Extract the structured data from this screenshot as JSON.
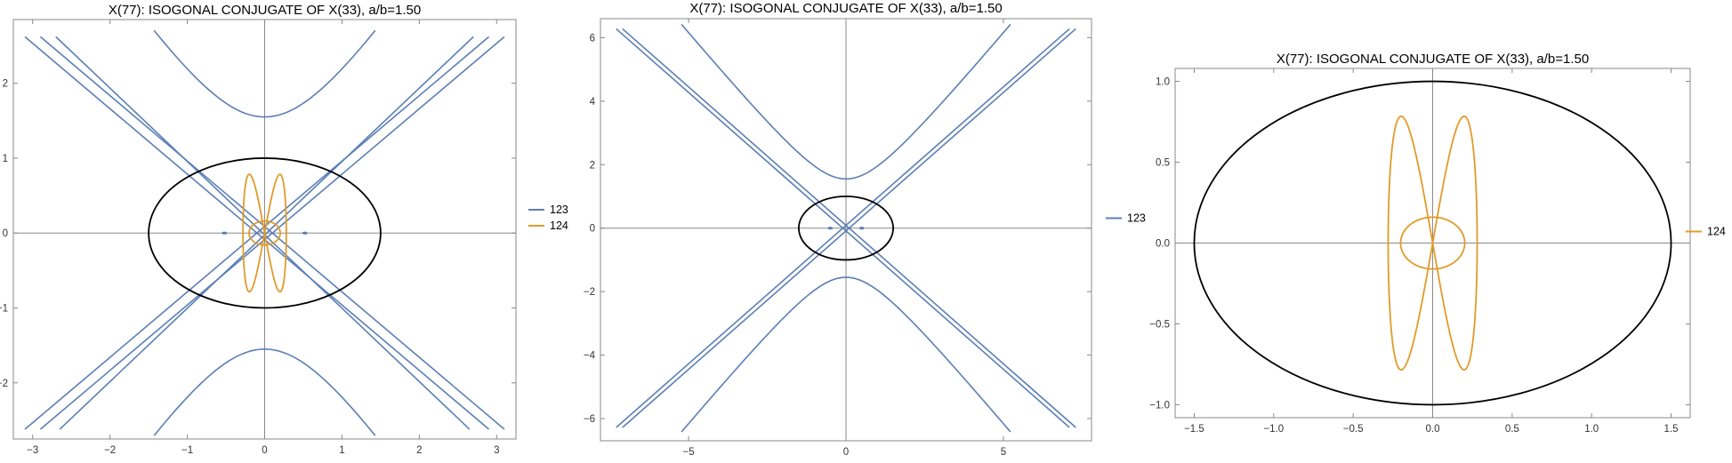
{
  "chart_data": [
    {
      "type": "line",
      "title": "X(77): ISOGONAL CONJUGATE OF X(33), a/b=1.50",
      "xlim": [
        -3.25,
        3.25
      ],
      "ylim": [
        -2.75,
        2.85
      ],
      "x_ticks": [
        -3,
        -2,
        -1,
        0,
        1,
        2,
        3
      ],
      "y_ticks": [
        -2,
        -1,
        0,
        1,
        2
      ],
      "x_tick_labels": [
        "−3",
        "−2",
        "−1",
        "0",
        "1",
        "2",
        "3"
      ],
      "y_tick_labels": [
        "−2",
        "−1",
        "0",
        "1",
        "2"
      ],
      "grid": false,
      "axes_through_origin": true,
      "legend_position": "right",
      "reference_curve": {
        "shape": "ellipse",
        "a": 1.5,
        "b": 1.0,
        "color": "#000000"
      },
      "series": [
        {
          "name": "123",
          "color": "#5b7fb5",
          "hyperbola": {
            "a": 1.0,
            "b": 1.55
          },
          "diagonals": [
            {
              "start": [
                -3.1,
                -2.62
              ],
              "end": [
                2.9,
                2.62
              ]
            },
            {
              "start": [
                -2.9,
                -2.62
              ],
              "end": [
                3.1,
                2.62
              ]
            },
            {
              "start": [
                -3.1,
                2.62
              ],
              "end": [
                2.9,
                -2.62
              ]
            },
            {
              "start": [
                -2.9,
                2.62
              ],
              "end": [
                3.1,
                -2.62
              ]
            },
            {
              "start": [
                -2.7,
                2.62
              ],
              "end": [
                2.65,
                -2.62
              ]
            },
            {
              "start": [
                -2.65,
                -2.62
              ],
              "end": [
                2.7,
                2.62
              ]
            }
          ],
          "marks": [
            {
              "x": -0.52,
              "y": 0
            },
            {
              "x": 0.52,
              "y": 0
            }
          ]
        },
        {
          "name": "124",
          "color": "#e19b2a",
          "lobe_figure": {
            "x_range": [
              -0.28,
              0.28
            ],
            "y_peak": 0.8,
            "inner_y": 0.16
          }
        }
      ]
    },
    {
      "type": "line",
      "title": "X(77): ISOGONAL CONJUGATE OF X(33), a/b=1.50",
      "xlim": [
        -7.8,
        7.8
      ],
      "ylim": [
        -6.7,
        6.6
      ],
      "x_ticks": [
        -5,
        0,
        5
      ],
      "y_ticks": [
        -6,
        -4,
        -2,
        0,
        2,
        4,
        6
      ],
      "x_tick_labels": [
        "−5",
        "0",
        "5"
      ],
      "y_tick_labels": [
        "−6",
        "−4",
        "−2",
        "0",
        "2",
        "4",
        "6"
      ],
      "grid": false,
      "axes_through_origin": true,
      "legend_position": "right",
      "reference_curve": {
        "shape": "ellipse",
        "a": 1.5,
        "b": 1.0,
        "color": "#000000"
      },
      "series": [
        {
          "name": "123",
          "color": "#5b7fb5",
          "hyperbola": {
            "a": 1.3,
            "b": 1.55
          },
          "diagonals": [
            {
              "start": [
                -7.3,
                -6.28
              ],
              "end": [
                7.1,
                6.28
              ]
            },
            {
              "start": [
                -7.1,
                -6.28
              ],
              "end": [
                7.3,
                6.28
              ]
            },
            {
              "start": [
                -7.3,
                6.28
              ],
              "end": [
                7.1,
                -6.28
              ]
            },
            {
              "start": [
                -7.1,
                6.28
              ],
              "end": [
                7.3,
                -6.28
              ]
            }
          ],
          "marks": [
            {
              "x": -0.5,
              "y": 0
            },
            {
              "x": 0.5,
              "y": 0
            }
          ]
        }
      ]
    },
    {
      "type": "line",
      "title": "X(77): ISOGONAL CONJUGATE OF X(33), a/b=1.50",
      "xlim": [
        -1.62,
        1.62
      ],
      "ylim": [
        -1.08,
        1.08
      ],
      "x_ticks": [
        -1.5,
        -1.0,
        -0.5,
        0.0,
        0.5,
        1.0,
        1.5
      ],
      "y_ticks": [
        -1.0,
        -0.5,
        0.0,
        0.5,
        1.0
      ],
      "x_tick_labels": [
        "−1.5",
        "−1.0",
        "−0.5",
        "0.0",
        "0.5",
        "1.0",
        "1.5"
      ],
      "y_tick_labels": [
        "−1.0",
        "−0.5",
        "0.0",
        "0.5",
        "1.0"
      ],
      "grid": false,
      "axes_through_origin": true,
      "legend_position": "right",
      "reference_curve": {
        "shape": "ellipse",
        "a": 1.5,
        "b": 1.0,
        "color": "#000000"
      },
      "series": [
        {
          "name": "124",
          "color": "#e19b2a",
          "lobe_figure": {
            "x_range": [
              -0.28,
              0.28
            ],
            "y_peak": 0.8,
            "inner_y": 0.16
          }
        }
      ]
    }
  ]
}
